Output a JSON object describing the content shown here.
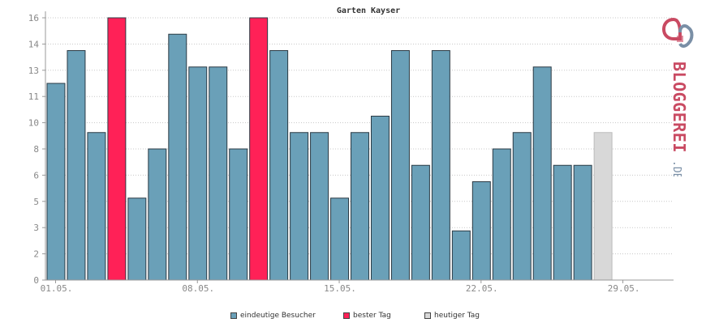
{
  "chart_data": {
    "type": "bar",
    "title": "Garten Kayser",
    "xlabel": "",
    "ylabel": "",
    "ylim": [
      0,
      16
    ],
    "yticks": [
      "0",
      "2",
      "3",
      "5",
      "6",
      "8",
      "10",
      "11",
      "13",
      "14",
      "16"
    ],
    "ytick_values": [
      0,
      1.6,
      3.2,
      4.8,
      6.4,
      8.0,
      9.6,
      11.2,
      12.8,
      14.4,
      16.0
    ],
    "xtick_labels": [
      "01.05.",
      "08.05.",
      "15.05.",
      "22.05.",
      "29.05."
    ],
    "xtick_day_index": [
      1,
      8,
      15,
      22,
      29
    ],
    "day_start": 1,
    "day_end": 31,
    "values": [
      12,
      14,
      9,
      16,
      5,
      8,
      15,
      13,
      13,
      8,
      16,
      14,
      9,
      9,
      5,
      9,
      10,
      14,
      7,
      14,
      3,
      6,
      8,
      9,
      13,
      7,
      7,
      9
    ],
    "bar_kind": [
      "normal",
      "normal",
      "normal",
      "best",
      "normal",
      "normal",
      "normal",
      "normal",
      "normal",
      "normal",
      "best",
      "normal",
      "normal",
      "normal",
      "normal",
      "normal",
      "normal",
      "normal",
      "normal",
      "normal",
      "normal",
      "normal",
      "normal",
      "normal",
      "normal",
      "normal",
      "normal",
      "today"
    ],
    "grid": true,
    "legend_position": "bottom",
    "colors": {
      "normal": "#6aa0b8",
      "best": "#ff2157",
      "today": "#d8d8d8",
      "grid": "#c8c8c8",
      "axis": "#999999",
      "tick_text": "#888888"
    }
  },
  "legend": {
    "items": [
      {
        "label": "eindeutige Besucher",
        "color": "#6aa0b8"
      },
      {
        "label": "bester Tag",
        "color": "#ff2157"
      },
      {
        "label": "heutiger Tag",
        "color": "#d8d8d8"
      }
    ]
  },
  "logo": {
    "text": "BLOGGEREI",
    "suffix": ".DE",
    "color": "#c94a62",
    "suffix_color": "#7a8fa6"
  }
}
